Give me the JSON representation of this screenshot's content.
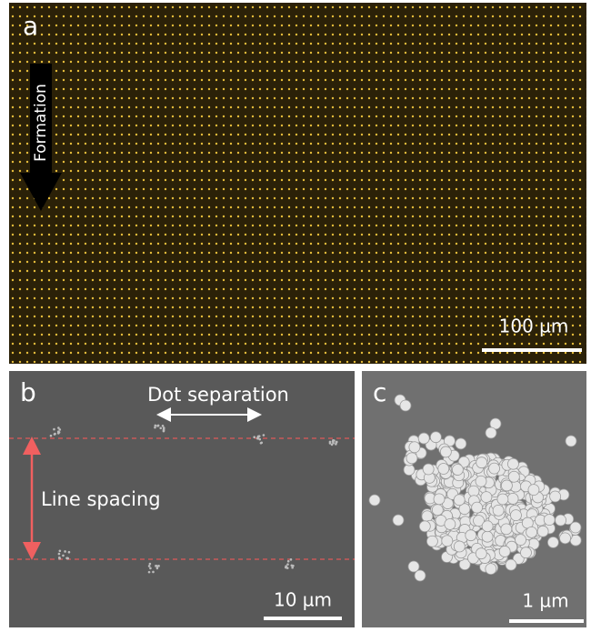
{
  "panels": [
    {
      "label": "a",
      "annotations": [
        "Formation"
      ],
      "scale_bar": "100 µm"
    },
    {
      "label": "b",
      "annotations": [
        "Dot separation",
        "Line spacing"
      ],
      "scale_bar": "10 µm"
    },
    {
      "label": "c",
      "annotations": [],
      "scale_bar": "1 µm"
    }
  ]
}
